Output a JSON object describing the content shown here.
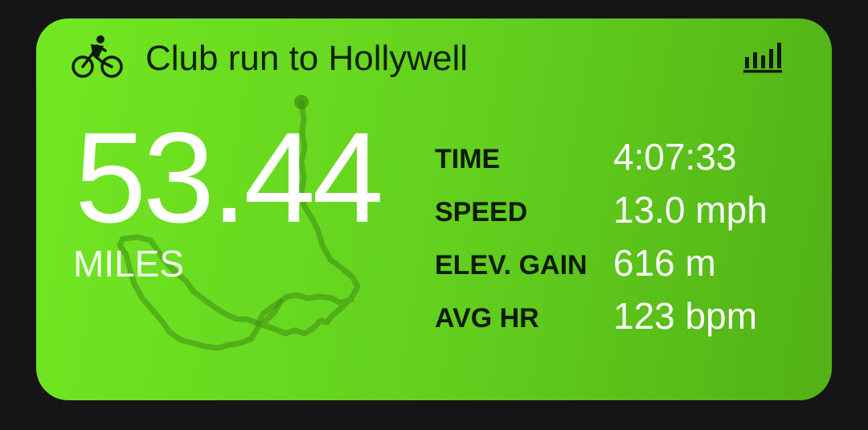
{
  "card": {
    "title": "Club run to Hollywell",
    "distance": "53.44",
    "distance_unit": "MILES",
    "header_icon": "cyclist-icon",
    "stats_icon": "bar-chart-icon",
    "accent_color": "#66d41e"
  },
  "metrics": [
    {
      "label": "TIME",
      "value": "4:07:33"
    },
    {
      "label": "SPEED",
      "value": "13.0 mph"
    },
    {
      "label": "ELEV. GAIN",
      "value": "616 m"
    },
    {
      "label": "AVG HR",
      "value": "123 bpm"
    }
  ]
}
